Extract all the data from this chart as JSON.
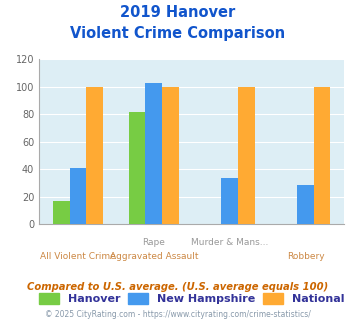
{
  "title_line1": "2019 Hanover",
  "title_line2": "Violent Crime Comparison",
  "groups": [
    {
      "label_top": "",
      "label_bot": "All Violent Crime",
      "hanover": 17,
      "nh": 41,
      "nat": 100
    },
    {
      "label_top": "Rape",
      "label_bot": "Aggravated Assault",
      "hanover": 82,
      "nh": 103,
      "nat": 100
    },
    {
      "label_top": "Murder & Mans...",
      "label_bot": "",
      "hanover": 0,
      "nh": 34,
      "nat": 100
    },
    {
      "label_top": "",
      "label_bot": "Robbery",
      "hanover": 0,
      "nh": 29,
      "nat": 100
    }
  ],
  "colors": {
    "Hanover": "#77cc44",
    "New Hampshire": "#4499ee",
    "National": "#ffaa33"
  },
  "ylim": [
    0,
    120
  ],
  "yticks": [
    0,
    20,
    40,
    60,
    80,
    100,
    120
  ],
  "plot_bg": "#ddeef5",
  "title_color": "#1155cc",
  "xlabel_top_color": "#999999",
  "xlabel_bot_color": "#cc8844",
  "legend_label_color": "#333399",
  "footnote1": "Compared to U.S. average. (U.S. average equals 100)",
  "footnote2": "© 2025 CityRating.com - https://www.cityrating.com/crime-statistics/",
  "footnote1_color": "#cc6600",
  "footnote2_color": "#8899aa",
  "footnote2_url_color": "#3377cc"
}
